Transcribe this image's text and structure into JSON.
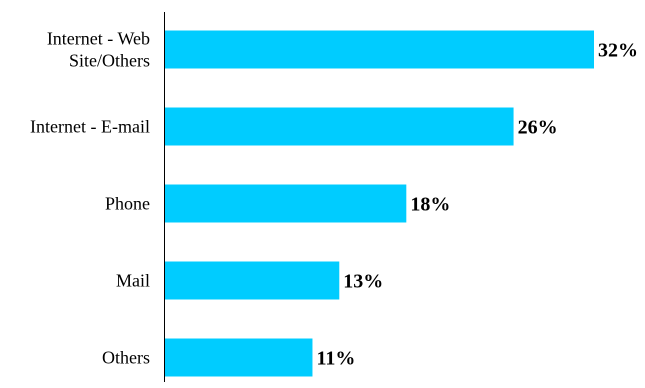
{
  "chart_data": {
    "type": "bar",
    "orientation": "horizontal",
    "categories": [
      [
        "Internet - Web",
        "Site/Others"
      ],
      [
        "Internet - E-mail"
      ],
      [
        "Phone"
      ],
      [
        "Mail"
      ],
      [
        "Others"
      ]
    ],
    "values": [
      32,
      26,
      18,
      13,
      11
    ],
    "value_labels": [
      "32%",
      "26%",
      "18%",
      "13%",
      "11%"
    ],
    "bar_color": "#00CCFF",
    "xlim": [
      0,
      32
    ],
    "grid": false,
    "legend": "none"
  }
}
